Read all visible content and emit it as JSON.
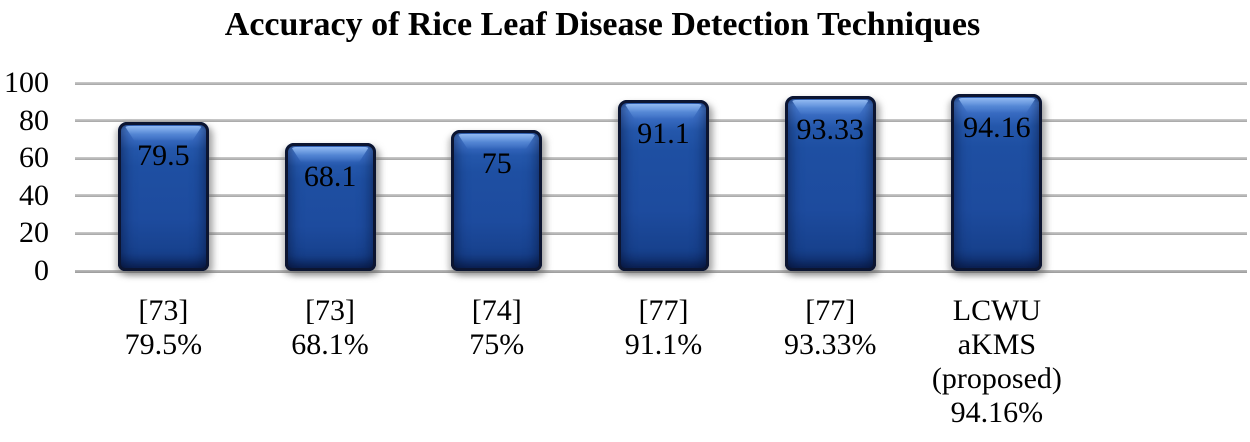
{
  "figure": {
    "title": "Accuracy of Rice Leaf Disease Detection Techniques"
  },
  "chart_data": {
    "type": "bar",
    "title": "Accuracy of Rice Leaf Disease Detection Techniques",
    "xlabel": "",
    "ylabel": "",
    "ylim": [
      0,
      100
    ],
    "yticks": [
      0,
      20,
      40,
      60,
      80,
      100
    ],
    "grid": true,
    "legend_position": "none",
    "categories": [
      "[73]\n79.5%",
      "[73]\n68.1%",
      "[74]\n75%",
      "[77]\n91.1%",
      "[77]\n93.33%",
      "LCWU\naKMS\n(proposed)\n94.16%"
    ],
    "values": [
      79.5,
      68.1,
      75,
      91.1,
      93.33,
      94.16
    ],
    "bar_labels": [
      "79.5",
      "68.1",
      "75",
      "91.1",
      "93.33",
      "94.16"
    ],
    "colors": {
      "bar_fill": "#1d4ca0",
      "bar_rim": "#0c1531",
      "bar_highlight": "#5585d8",
      "gridline": "#a6a6a6",
      "text": "#000000",
      "background": "#ffffff"
    }
  }
}
